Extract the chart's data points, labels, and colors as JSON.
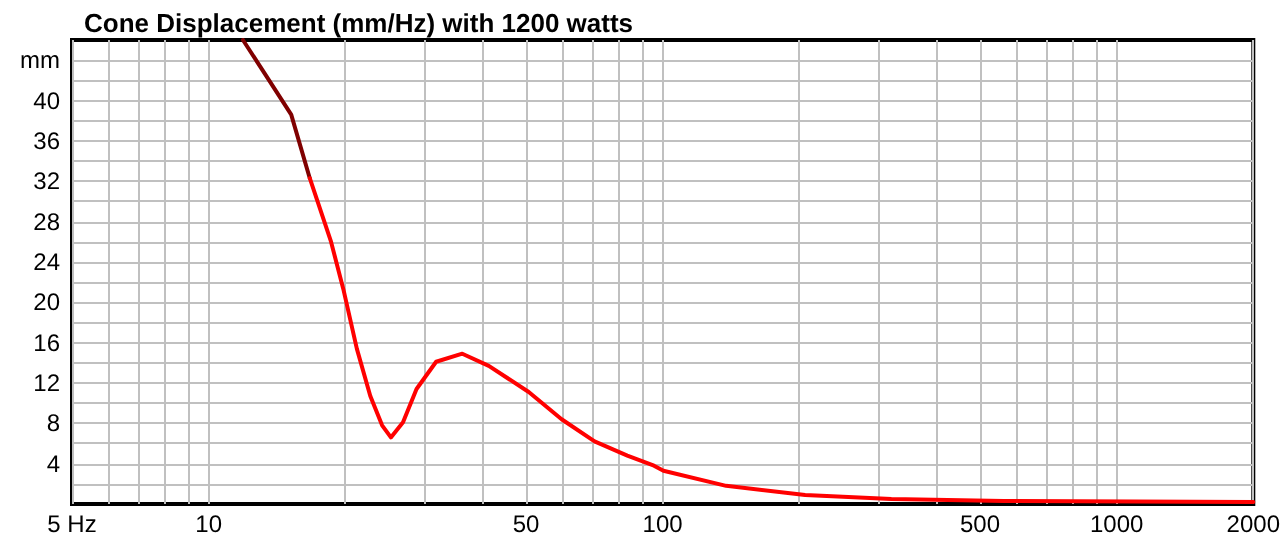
{
  "chart_data": {
    "type": "line",
    "title": "Cone Displacement (mm/Hz) with 1200 watts",
    "log": "x",
    "grid": true,
    "marker": "none",
    "line_style": "solid",
    "xlim": [
      5,
      2000
    ],
    "xticks": [
      {
        "value": 5,
        "label": "5 Hz"
      },
      {
        "value": 6,
        "label": null
      },
      {
        "value": 7,
        "label": null
      },
      {
        "value": 8,
        "label": null
      },
      {
        "value": 9,
        "label": null
      },
      10,
      {
        "value": 20,
        "label": null
      },
      {
        "value": 30,
        "label": null
      },
      {
        "value": 40,
        "label": null
      },
      50,
      {
        "value": 60,
        "label": null
      },
      {
        "value": 70,
        "label": null
      },
      {
        "value": 80,
        "label": null
      },
      {
        "value": 90,
        "label": null
      },
      100,
      {
        "value": 200,
        "label": null
      },
      {
        "value": 300,
        "label": null
      },
      {
        "value": 400,
        "label": null
      },
      500,
      {
        "value": 600,
        "label": null
      },
      {
        "value": 700,
        "label": null
      },
      {
        "value": 800,
        "label": null
      },
      {
        "value": 900,
        "label": null
      },
      1000,
      2000
    ],
    "ylim": [
      0,
      46
    ],
    "yticks": [
      {
        "value": 2,
        "label": null
      },
      4,
      {
        "value": 6,
        "label": null
      },
      8,
      {
        "value": 10,
        "label": null
      },
      12,
      {
        "value": 14,
        "label": null
      },
      16,
      {
        "value": 18,
        "label": null
      },
      20,
      {
        "value": 22,
        "label": null
      },
      24,
      {
        "value": 26,
        "label": null
      },
      28,
      {
        "value": 30,
        "label": null
      },
      32,
      {
        "value": 34,
        "label": null
      },
      36,
      {
        "value": 38,
        "label": null
      },
      40,
      {
        "value": 42,
        "label": null
      },
      {
        "value": 44,
        "label": "mm"
      }
    ],
    "series": [
      {
        "color": "#800000",
        "x": [
          11.9,
          13.5,
          15.2,
          16.7
        ],
        "values": [
          46,
          42.2,
          38.6,
          32.3
        ]
      },
      {
        "color": "#ff0000",
        "x": [
          16.7,
          18.6,
          19.8,
          21.2,
          22.7,
          24.1,
          25.2,
          26.8,
          28.7,
          31.7,
          36.2,
          41.4,
          50.7,
          59.9,
          70.8,
          83.6,
          95.7,
          100.4,
          138,
          206,
          319,
          564,
          2000
        ],
        "values": [
          32.3,
          26.0,
          21.3,
          15.4,
          10.7,
          7.8,
          6.6,
          8.1,
          11.4,
          14.1,
          14.9,
          13.7,
          11.1,
          8.4,
          6.2,
          4.8,
          3.8,
          3.3,
          1.8,
          0.9,
          0.5,
          0.3,
          0.2
        ]
      }
    ]
  }
}
